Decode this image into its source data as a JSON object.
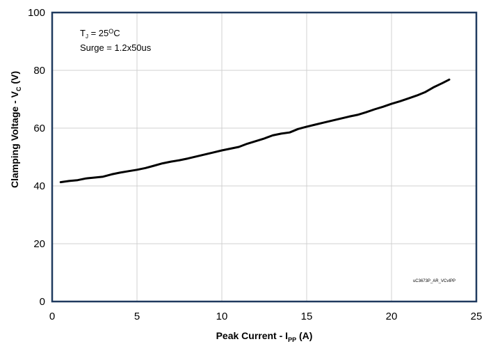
{
  "chart_data": {
    "type": "line",
    "title": "",
    "xlabel": {
      "main": "Peak Current - I",
      "sub": "PP",
      "unit": " (A)"
    },
    "ylabel": {
      "main": "Clamping Voltage - V",
      "sub": "C",
      "unit": " (V)"
    },
    "xlim": [
      0,
      25
    ],
    "ylim": [
      0,
      100
    ],
    "xticks": [
      0,
      5,
      10,
      15,
      20,
      25
    ],
    "yticks": [
      0,
      20,
      40,
      60,
      80,
      100
    ],
    "grid": true,
    "annotations": {
      "tj_prefix": "T",
      "tj_sub": "J",
      "tj_value": " = 25",
      "tj_sup": "O",
      "tj_unit": "C",
      "surge": "Surge = 1.2x50us",
      "figure_id": "uC3673P_AR_VCvIPP"
    },
    "series": [
      {
        "color": "#000000",
        "x": [
          0.5,
          1.0,
          1.5,
          2.0,
          2.5,
          3.0,
          3.5,
          4.0,
          4.5,
          5.0,
          5.5,
          6.0,
          6.5,
          7.0,
          7.5,
          8.0,
          8.5,
          9.0,
          9.5,
          10.0,
          10.5,
          11.0,
          11.5,
          12.0,
          12.5,
          13.0,
          13.5,
          14.0,
          14.5,
          15.0,
          15.5,
          16.0,
          16.5,
          17.0,
          17.5,
          18.0,
          18.5,
          19.0,
          19.5,
          20.0,
          20.5,
          21.0,
          21.5,
          22.0,
          22.5,
          23.0,
          23.4
        ],
        "y": [
          41.3,
          41.7,
          42.0,
          42.6,
          42.9,
          43.2,
          44.0,
          44.6,
          45.1,
          45.6,
          46.2,
          47.0,
          47.8,
          48.4,
          48.9,
          49.5,
          50.2,
          50.9,
          51.6,
          52.3,
          52.9,
          53.5,
          54.6,
          55.5,
          56.4,
          57.5,
          58.1,
          58.5,
          59.7,
          60.5,
          61.2,
          61.9,
          62.6,
          63.3,
          64.0,
          64.6,
          65.5,
          66.5,
          67.4,
          68.4,
          69.3,
          70.3,
          71.3,
          72.5,
          74.2,
          75.6,
          76.8
        ]
      }
    ]
  }
}
